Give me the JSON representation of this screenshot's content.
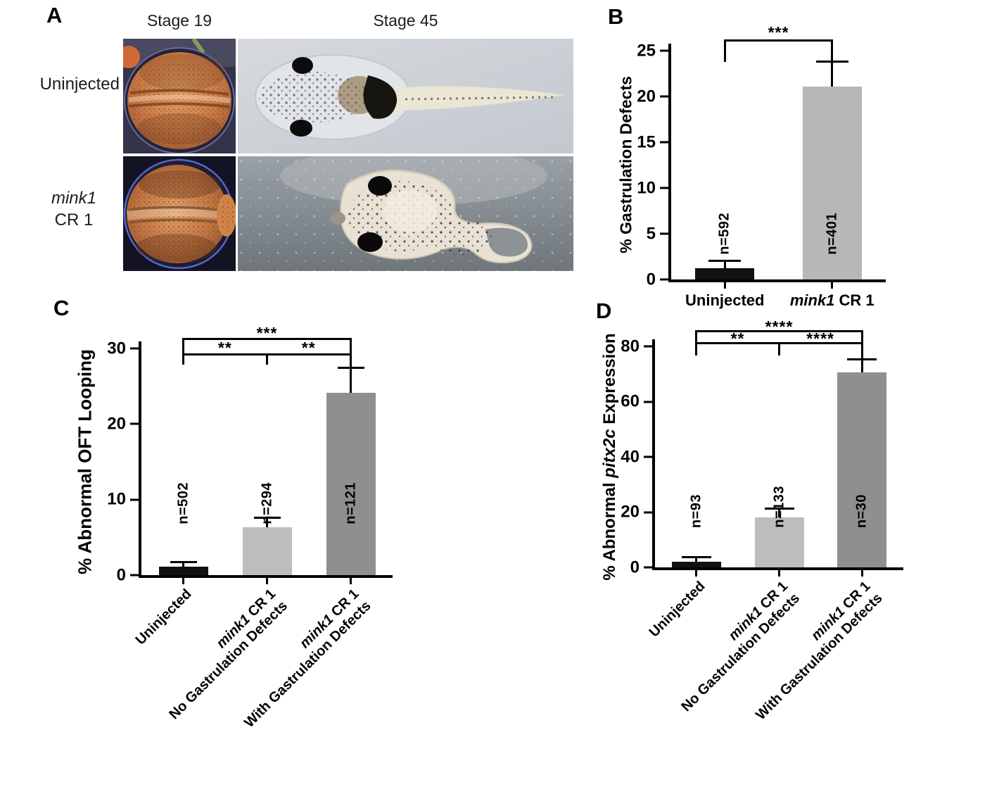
{
  "panel_a": {
    "letter": "A",
    "col_headers": [
      "Stage 19",
      "Stage 45"
    ],
    "row1_label": "Uninjected",
    "row2_line1": "mink1",
    "row2_line2": "CR 1"
  },
  "chart_data": [
    {
      "id": "B",
      "type": "bar",
      "panel_letter": "B",
      "ylabel_segments": [
        {
          "text": "% Gastrulation Defects"
        }
      ],
      "ylim": [
        0,
        25
      ],
      "yticks": [
        0,
        5,
        10,
        15,
        20,
        25
      ],
      "rotate_xlabels": false,
      "categories": [
        "Uninjected",
        "mink1 CR 1"
      ],
      "bars": [
        {
          "value": 1.2,
          "error_top": 1.9,
          "n_label": "n=592",
          "color": "#111111",
          "xlabel_lines": [
            [
              {
                "text": "Uninjected"
              }
            ]
          ]
        },
        {
          "value": 21.1,
          "error_top": 23.7,
          "n_label": "n=401",
          "color": "#b7b7b7",
          "xlabel_lines": [
            [
              {
                "text": "mink1",
                "italic": true
              },
              {
                "text": " CR 1"
              }
            ]
          ]
        }
      ],
      "significance": [
        {
          "stars": "***",
          "from": 0,
          "to": 1
        }
      ]
    },
    {
      "id": "C",
      "type": "bar",
      "panel_letter": "C",
      "ylabel_segments": [
        {
          "text": "% Abnormal OFT Looping"
        }
      ],
      "ylim": [
        0,
        30
      ],
      "yticks": [
        0,
        10,
        20,
        30
      ],
      "rotate_xlabels": true,
      "categories": [
        "Uninjected",
        "mink1 CR 1 No Gastrulation Defects",
        "mink1 CR 1 With Gastrulation Defects"
      ],
      "bars": [
        {
          "value": 1.1,
          "error_top": 1.6,
          "n_label": "n=502",
          "color": "#111111",
          "xlabel_lines": [
            [
              {
                "text": "Uninjected"
              }
            ]
          ]
        },
        {
          "value": 6.3,
          "error_top": 7.5,
          "n_label": "n=294",
          "color": "#bdbdbd",
          "xlabel_lines": [
            [
              {
                "text": "mink1",
                "italic": true
              },
              {
                "text": " CR 1"
              }
            ],
            [
              {
                "text": "No Gastrulation Defects"
              }
            ]
          ]
        },
        {
          "value": 24.1,
          "error_top": 27.3,
          "n_label": "n=121",
          "color": "#8f8f8f",
          "xlabel_lines": [
            [
              {
                "text": "mink1",
                "italic": true
              },
              {
                "text": " CR 1"
              }
            ],
            [
              {
                "text": "With Gastrulation Defects"
              }
            ]
          ]
        }
      ],
      "significance": [
        {
          "stars": "***",
          "from": 0,
          "to": 2
        },
        {
          "stars": "**",
          "from": 0,
          "to": 1
        },
        {
          "stars": "**",
          "from": 1,
          "to": 2
        }
      ]
    },
    {
      "id": "D",
      "type": "bar",
      "panel_letter": "D",
      "ylabel_segments": [
        {
          "text": "% Abnormal "
        },
        {
          "text": "pitx2c",
          "italic": true
        },
        {
          "text": " Expression"
        }
      ],
      "ylim": [
        0,
        80
      ],
      "yticks": [
        0,
        20,
        40,
        60,
        80
      ],
      "rotate_xlabels": true,
      "categories": [
        "Uninjected",
        "mink1 CR 1 No Gastrulation Defects",
        "mink1 CR 1 With Gastrulation Defects"
      ],
      "bars": [
        {
          "value": 2.0,
          "error_top": 3.2,
          "n_label": "n=93",
          "color": "#111111",
          "xlabel_lines": [
            [
              {
                "text": "Uninjected"
              }
            ]
          ]
        },
        {
          "value": 18.0,
          "error_top": 20.8,
          "n_label": "n=133",
          "color": "#bdbdbd",
          "xlabel_lines": [
            [
              {
                "text": "mink1",
                "italic": true
              },
              {
                "text": " CR 1"
              }
            ],
            [
              {
                "text": "No Gastrulation Defects"
              }
            ]
          ]
        },
        {
          "value": 70.5,
          "error_top": 74.8,
          "n_label": "n=30",
          "color": "#8f8f8f",
          "xlabel_lines": [
            [
              {
                "text": "mink1",
                "italic": true
              },
              {
                "text": " CR 1"
              }
            ],
            [
              {
                "text": "With Gastrulation Defects"
              }
            ]
          ]
        }
      ],
      "significance": [
        {
          "stars": "****",
          "from": 0,
          "to": 2
        },
        {
          "stars": "**",
          "from": 0,
          "to": 1
        },
        {
          "stars": "****",
          "from": 1,
          "to": 2
        }
      ]
    }
  ]
}
